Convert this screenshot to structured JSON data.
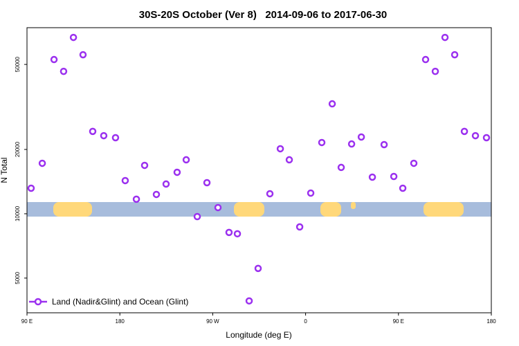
{
  "chart_data": {
    "type": "scatter",
    "title": "30S-20S October (Ver 8)   2014-09-06 to 2017-06-30",
    "x_label": "Longitude (deg E)",
    "y_label": "N Total",
    "log_y": true,
    "xlim": [
      90,
      540
    ],
    "ylim": [
      3440,
      74300
    ],
    "xticks": [
      {
        "value": 90,
        "label": "90 E"
      },
      180,
      {
        "value": 270,
        "label": "90 W"
      },
      {
        "value": 360,
        "label": "0"
      },
      {
        "value": 450,
        "label": "90 E"
      },
      {
        "value": 540,
        "label": "180"
      }
    ],
    "yticks": [
      5000,
      10000,
      20000,
      50000
    ],
    "legend": "bottom-left",
    "series": [
      {
        "name": "Land (Nadir&Glint) and Ocean (Glint)",
        "color": "#9b30ef",
        "x": [
          94,
          104.8,
          116.2,
          125.5,
          135,
          144.3,
          153.7,
          164.4,
          175.8,
          185.2,
          196,
          204,
          215.4,
          224.8,
          235.5,
          244.3,
          255,
          264.4,
          275.1,
          285.8,
          293.9,
          305.3,
          314,
          325.4,
          335.5,
          344.2,
          354.3,
          365,
          375.7,
          385.8,
          394.5,
          404.6,
          414,
          424.7,
          436.1,
          445.5,
          454.2,
          464.9,
          476.3,
          485.7,
          495.1,
          504.5,
          513.9,
          524.6,
          535.3
        ],
        "values": [
          13170,
          17230,
          52700,
          46400,
          66900,
          55500,
          24300,
          23200,
          22700,
          14300,
          11700,
          16850,
          12320,
          13780,
          15640,
          17890,
          9700,
          13980,
          10690,
          8180,
          8060,
          3910,
          5550,
          12410,
          20150,
          17890,
          8680,
          12500,
          21550,
          32700,
          16480,
          21220,
          22870,
          14840,
          21070,
          14950,
          13170,
          17230,
          52700,
          46400,
          66900,
          55500,
          24300,
          23200,
          22700
        ]
      }
    ]
  }
}
